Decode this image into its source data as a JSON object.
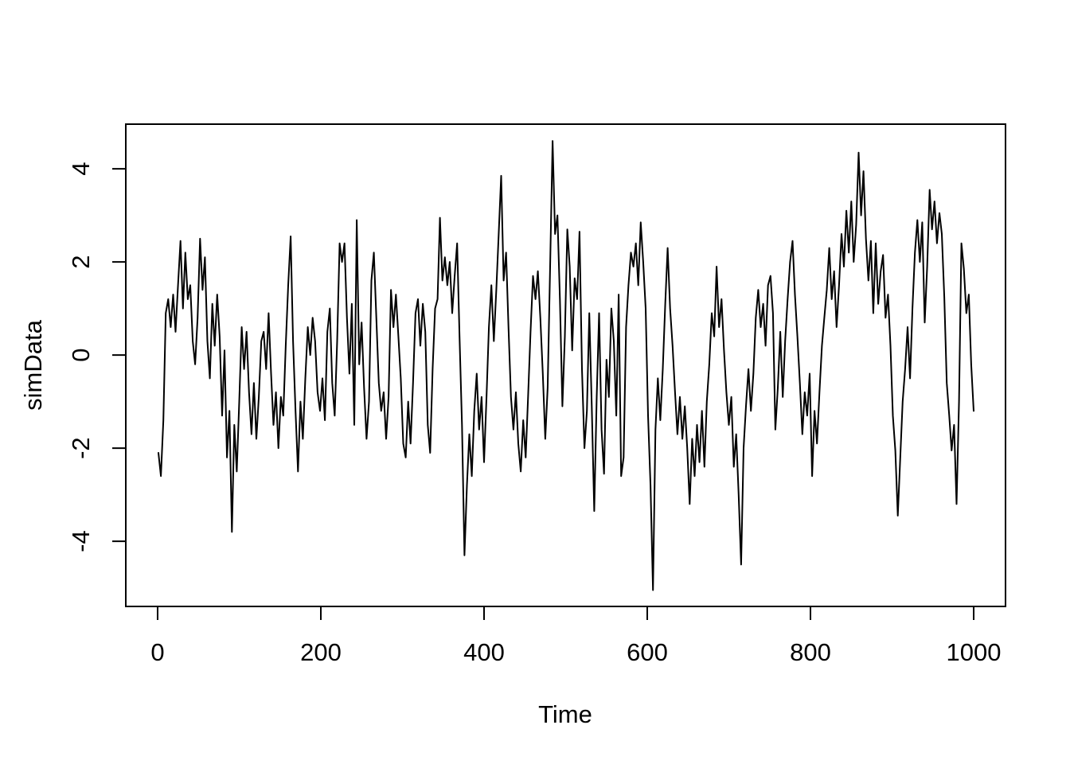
{
  "figure": {
    "background": "#ffffff",
    "line_color": "#000000",
    "axis_color": "#000000",
    "text_color": "#000000"
  },
  "chart_data": {
    "type": "line",
    "title": "",
    "xlabel": "Time",
    "ylabel": "simData",
    "x_ticks": [
      0,
      200,
      400,
      600,
      800,
      1000
    ],
    "y_ticks": [
      4,
      2,
      0,
      -2,
      -4
    ],
    "xlim": [
      -39,
      1039
    ],
    "ylim": [
      -5.4,
      4.96
    ],
    "grid": false,
    "legend": "none",
    "series": [
      {
        "name": "simData",
        "color": "#000000",
        "x": {
          "start": 1,
          "step": 3,
          "count": 334
        },
        "values": [
          -2.1,
          -2.6,
          -1.4,
          0.9,
          1.2,
          0.6,
          1.3,
          0.5,
          1.5,
          2.45,
          1.0,
          2.2,
          1.2,
          1.5,
          0.3,
          -0.2,
          0.8,
          2.5,
          1.4,
          2.1,
          0.3,
          -0.5,
          1.1,
          0.2,
          1.3,
          0.4,
          -1.3,
          0.1,
          -2.2,
          -1.2,
          -3.8,
          -1.5,
          -2.5,
          -1.0,
          0.6,
          -0.3,
          0.5,
          -0.8,
          -1.7,
          -0.6,
          -1.8,
          -0.9,
          0.3,
          0.5,
          -0.3,
          0.9,
          -0.4,
          -1.5,
          -0.8,
          -2.0,
          -0.9,
          -1.3,
          0.2,
          1.5,
          2.55,
          0.3,
          -1.2,
          -2.5,
          -1.0,
          -1.8,
          -0.5,
          0.6,
          0.0,
          0.8,
          0.3,
          -0.8,
          -1.2,
          -0.5,
          -1.4,
          0.5,
          1.0,
          -0.6,
          -1.3,
          0.3,
          2.4,
          2.0,
          2.4,
          0.8,
          -0.4,
          1.1,
          -1.5,
          2.9,
          -0.2,
          0.7,
          -0.7,
          -1.8,
          -1.0,
          1.6,
          2.2,
          0.8,
          -0.6,
          -1.2,
          -0.8,
          -1.8,
          -0.9,
          1.4,
          0.6,
          1.3,
          0.4,
          -0.5,
          -1.9,
          -2.2,
          -1.0,
          -1.9,
          -0.6,
          0.9,
          1.2,
          0.2,
          1.1,
          0.5,
          -1.5,
          -2.1,
          -0.3,
          1.0,
          1.2,
          2.95,
          1.6,
          2.1,
          1.5,
          2.0,
          0.9,
          1.7,
          2.4,
          0.4,
          -1.5,
          -4.3,
          -2.8,
          -1.7,
          -2.6,
          -1.2,
          -0.4,
          -1.6,
          -0.9,
          -2.3,
          -0.9,
          0.6,
          1.5,
          0.3,
          1.4,
          2.6,
          3.85,
          1.6,
          2.2,
          0.6,
          -0.9,
          -1.6,
          -0.8,
          -1.9,
          -2.5,
          -1.4,
          -2.2,
          -0.9,
          0.5,
          1.7,
          1.2,
          1.8,
          0.8,
          -0.4,
          -1.8,
          -0.7,
          1.9,
          4.6,
          2.6,
          3.0,
          1.2,
          -1.1,
          0.4,
          2.7,
          1.9,
          0.1,
          1.65,
          1.2,
          2.65,
          -0.3,
          -2.0,
          -1.2,
          0.9,
          -1.1,
          -3.35,
          -0.9,
          0.9,
          -1.6,
          -2.55,
          -0.1,
          -0.9,
          1.0,
          0.3,
          -1.3,
          1.3,
          -2.6,
          -2.2,
          0.6,
          1.5,
          2.2,
          1.9,
          2.4,
          1.5,
          2.85,
          2.0,
          1.0,
          -1.3,
          -2.8,
          -5.05,
          -1.6,
          -0.5,
          -1.4,
          -0.3,
          1.1,
          2.3,
          1.0,
          0.2,
          -0.8,
          -1.7,
          -0.9,
          -1.8,
          -1.1,
          -2.0,
          -3.2,
          -1.8,
          -2.6,
          -1.5,
          -2.3,
          -1.2,
          -2.4,
          -1.0,
          -0.2,
          0.9,
          0.4,
          1.9,
          0.6,
          1.2,
          0.1,
          -0.8,
          -1.5,
          -0.9,
          -2.4,
          -1.7,
          -3.0,
          -4.5,
          -2.0,
          -1.1,
          -0.3,
          -1.2,
          -0.4,
          0.8,
          1.4,
          0.6,
          1.1,
          0.2,
          1.5,
          1.7,
          0.9,
          -1.6,
          -0.7,
          0.5,
          -0.9,
          0.3,
          1.2,
          2.0,
          2.45,
          1.3,
          0.4,
          -0.6,
          -1.7,
          -0.8,
          -1.3,
          -0.4,
          -2.6,
          -1.2,
          -1.9,
          -0.8,
          0.2,
          0.8,
          1.4,
          2.3,
          1.2,
          1.8,
          0.6,
          1.5,
          2.6,
          1.9,
          3.1,
          2.2,
          3.3,
          2.0,
          2.8,
          4.35,
          3.0,
          3.95,
          2.5,
          1.6,
          2.45,
          0.9,
          2.4,
          1.1,
          1.8,
          2.15,
          0.8,
          1.3,
          0.2,
          -1.3,
          -2.05,
          -3.45,
          -2.2,
          -1.0,
          -0.3,
          0.6,
          -0.5,
          1.0,
          2.2,
          2.9,
          2.0,
          2.85,
          0.7,
          1.9,
          3.55,
          2.7,
          3.3,
          2.4,
          3.05,
          2.6,
          1.25,
          -0.6,
          -1.3,
          -2.05,
          -1.5,
          -3.2,
          -1.0,
          2.4,
          1.85,
          0.9,
          1.3,
          -0.2,
          -1.2
        ]
      }
    ]
  }
}
